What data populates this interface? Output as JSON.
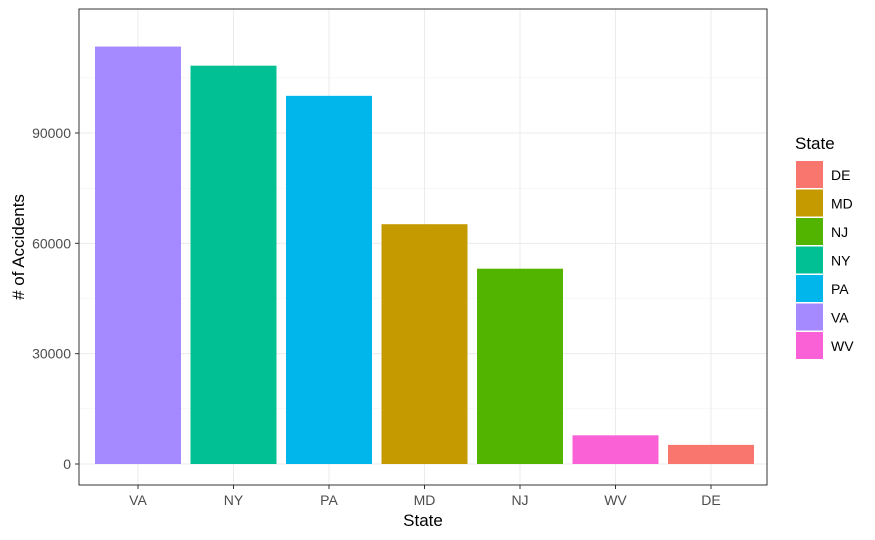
{
  "chart_data": {
    "type": "bar",
    "title": "",
    "xlabel": "State",
    "ylabel": "# of Accidents",
    "categories": [
      "VA",
      "NY",
      "PA",
      "MD",
      "NJ",
      "WV",
      "DE"
    ],
    "values": [
      113500,
      108300,
      100100,
      65200,
      53100,
      7800,
      5200
    ],
    "ylim": [
      0,
      118000
    ],
    "yticks": [
      "0",
      "30000",
      "60000",
      "90000"
    ],
    "ytick_values": [
      0,
      30000,
      60000,
      90000
    ],
    "grid": true,
    "legend": {
      "title": "State",
      "position": "right",
      "entries": [
        {
          "label": "DE",
          "color": "#F8766D"
        },
        {
          "label": "MD",
          "color": "#C49A00"
        },
        {
          "label": "NJ",
          "color": "#53B400"
        },
        {
          "label": "NY",
          "color": "#00C094"
        },
        {
          "label": "PA",
          "color": "#00B6EB"
        },
        {
          "label": "VA",
          "color": "#A58AFF"
        },
        {
          "label": "WV",
          "color": "#FB61D7"
        }
      ]
    },
    "colors": {
      "VA": "#A58AFF",
      "NY": "#00C094",
      "PA": "#00B6EB",
      "MD": "#C49A00",
      "NJ": "#53B400",
      "WV": "#FB61D7",
      "DE": "#F8766D"
    }
  }
}
